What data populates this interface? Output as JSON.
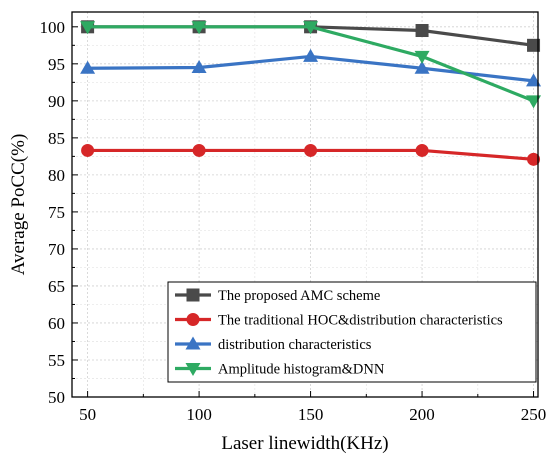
{
  "chart_data": {
    "type": "line",
    "title": "",
    "xlabel": "Laser linewidth(KHz)",
    "ylabel": "Average PoCC(%)",
    "x": [
      50,
      100,
      150,
      200,
      250
    ],
    "xticks": [
      "50",
      "100",
      "150",
      "200",
      "250"
    ],
    "xlim": [
      43,
      252
    ],
    "ylim": [
      50,
      102
    ],
    "yticks": [
      "50",
      "55",
      "60",
      "65",
      "70",
      "75",
      "80",
      "85",
      "90",
      "95",
      "100"
    ],
    "grid": true,
    "legend_position": "bottom-right",
    "series": [
      {
        "name": "The proposed AMC scheme",
        "color": "#4a4a4a",
        "marker": "square",
        "values": [
          100,
          100,
          100,
          99.5,
          97.5
        ]
      },
      {
        "name": "The traditional HOC&distribution characteristics",
        "color": "#d62728",
        "marker": "circle",
        "values": [
          83.3,
          83.3,
          83.3,
          83.3,
          82.1
        ]
      },
      {
        "name": "distribution  characteristics",
        "color": "#3a74c4",
        "marker": "triangle-up",
        "values": [
          94.4,
          94.5,
          96.0,
          94.4,
          92.7
        ]
      },
      {
        "name": "Amplitude histogram&DNN",
        "color": "#2eaa62",
        "marker": "triangle-down",
        "values": [
          100,
          100,
          100,
          96.0,
          90.0
        ]
      }
    ]
  }
}
